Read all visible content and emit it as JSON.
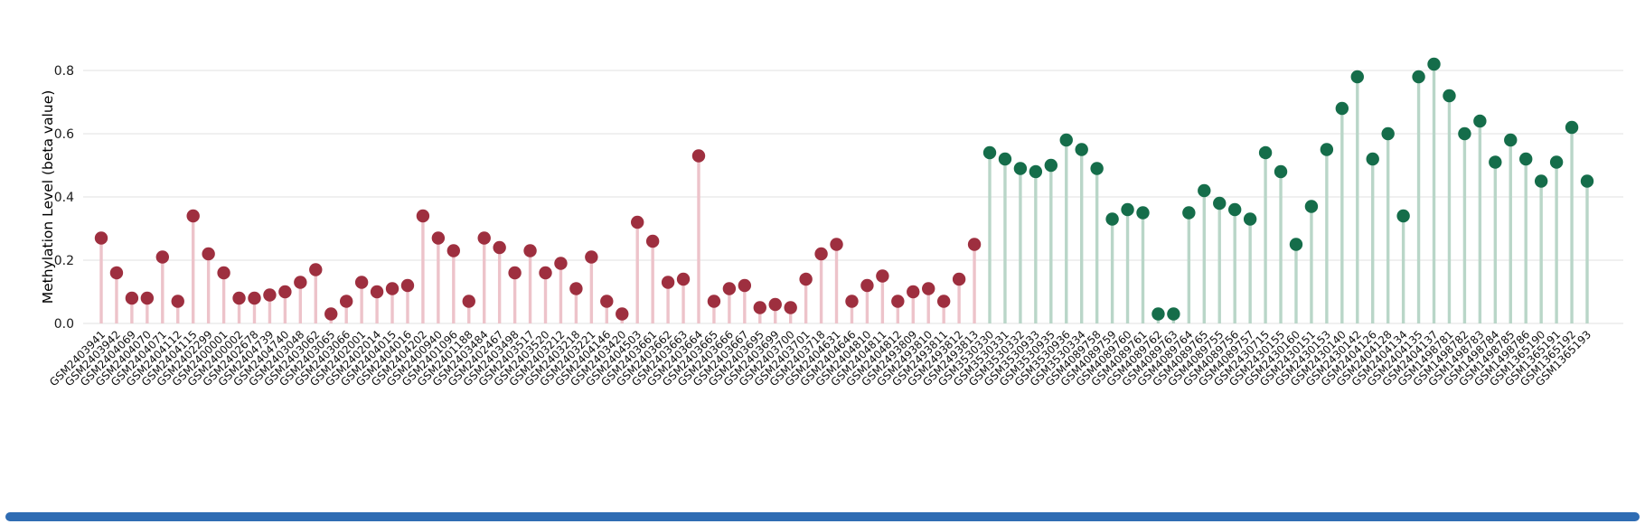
{
  "page": {
    "background": "#ffffff"
  },
  "scrollbar": {
    "color": "#2f6cb3"
  },
  "chart_data": {
    "type": "lollipop",
    "title": "",
    "xlabel": "",
    "ylabel": "Methylation Level (beta value)",
    "ylim": [
      0,
      0.88
    ],
    "ytick_values": [
      0,
      0.2,
      0.4,
      0.6,
      0.8
    ],
    "ytick_labels": [
      "0.0",
      "0.2",
      "0.4",
      "0.6",
      "0.8"
    ],
    "grid": true,
    "gridline_color": "#ebebeb",
    "legend": "none",
    "groups": [
      {
        "name": "group-1-red",
        "dot_color": "#9e2f3f",
        "stem_color": "#edc3ca",
        "labels": [
          "GSM2403941",
          "GSM2403942",
          "GSM2404069",
          "GSM2404070",
          "GSM2404071",
          "GSM2404112",
          "GSM2404115",
          "GSM2402299",
          "GSM2400001",
          "GSM2400002",
          "GSM2402678",
          "GSM2404739",
          "GSM2404740",
          "GSM2403048",
          "GSM2403062",
          "GSM2403065",
          "GSM2403066",
          "GSM2402001",
          "GSM2402014",
          "GSM2404015",
          "GSM2404016",
          "GSM2404202",
          "GSM2400940",
          "GSM2401096",
          "GSM2401188",
          "GSM2403484",
          "GSM2402467",
          "GSM2403498",
          "GSM2403517",
          "GSM2403520",
          "GSM2403212",
          "GSM2403218",
          "GSM2403221",
          "GSM2404146",
          "GSM2403420",
          "GSM2404503",
          "GSM2403661",
          "GSM2403662",
          "GSM2403663",
          "GSM2403664",
          "GSM2403665",
          "GSM2403666",
          "GSM2403667",
          "GSM2403695",
          "GSM2403699",
          "GSM2403700",
          "GSM2403701",
          "GSM2403718",
          "GSM2404631",
          "GSM2404646",
          "GSM2404810",
          "GSM2404811",
          "GSM2404812",
          "GSM2493809",
          "GSM2493810",
          "GSM2493811",
          "GSM2493812",
          "GSM2493813"
        ],
        "values": [
          0.27,
          0.16,
          0.08,
          0.08,
          0.21,
          0.07,
          0.34,
          0.22,
          0.16,
          0.08,
          0.08,
          0.09,
          0.1,
          0.13,
          0.17,
          0.03,
          0.07,
          0.13,
          0.1,
          0.11,
          0.12,
          0.34,
          0.27,
          0.23,
          0.07,
          0.27,
          0.24,
          0.16,
          0.23,
          0.16,
          0.19,
          0.11,
          0.21,
          0.07,
          0.03,
          0.32,
          0.26,
          0.13,
          0.14,
          0.53,
          0.07,
          0.11,
          0.12,
          0.05,
          0.06,
          0.05,
          0.14,
          0.22,
          0.25,
          0.07,
          0.12,
          0.15,
          0.07,
          0.1,
          0.11,
          0.07,
          0.14,
          0.25
        ]
      },
      {
        "name": "group-2-green",
        "dot_color": "#156d4a",
        "stem_color": "#b9d6c8",
        "labels": [
          "GSM3530330",
          "GSM3530331",
          "GSM3530332",
          "GSM3530933",
          "GSM3530935",
          "GSM3530936",
          "GSM3530334",
          "GSM4089758",
          "GSM4089759",
          "GSM4089760",
          "GSM4089761",
          "GSM4089762",
          "GSM4089763",
          "GSM4089764",
          "GSM4089765",
          "GSM4089755",
          "GSM4089756",
          "GSM4089757",
          "GSM2430715",
          "GSM2430155",
          "GSM2430160",
          "GSM2430151",
          "GSM2430153",
          "GSM2430140",
          "GSM2430142",
          "GSM2404126",
          "GSM2404128",
          "GSM2404134",
          "GSM2404135",
          "GSM2404137",
          "GSM1498781",
          "GSM1498782",
          "GSM1498783",
          "GSM1498784",
          "GSM1498785",
          "GSM1498786",
          "GSM1365190",
          "GSM1365191",
          "GSM1365192",
          "GSM1365193"
        ],
        "values": [
          0.54,
          0.52,
          0.49,
          0.48,
          0.5,
          0.58,
          0.55,
          0.49,
          0.33,
          0.36,
          0.35,
          0.03,
          0.03,
          0.35,
          0.42,
          0.38,
          0.36,
          0.33,
          0.54,
          0.48,
          0.25,
          0.37,
          0.55,
          0.68,
          0.78,
          0.52,
          0.6,
          0.34,
          0.78,
          0.82,
          0.72,
          0.6,
          0.64,
          0.51,
          0.58,
          0.52,
          0.45,
          0.51,
          0.62,
          0.45
        ]
      }
    ]
  }
}
